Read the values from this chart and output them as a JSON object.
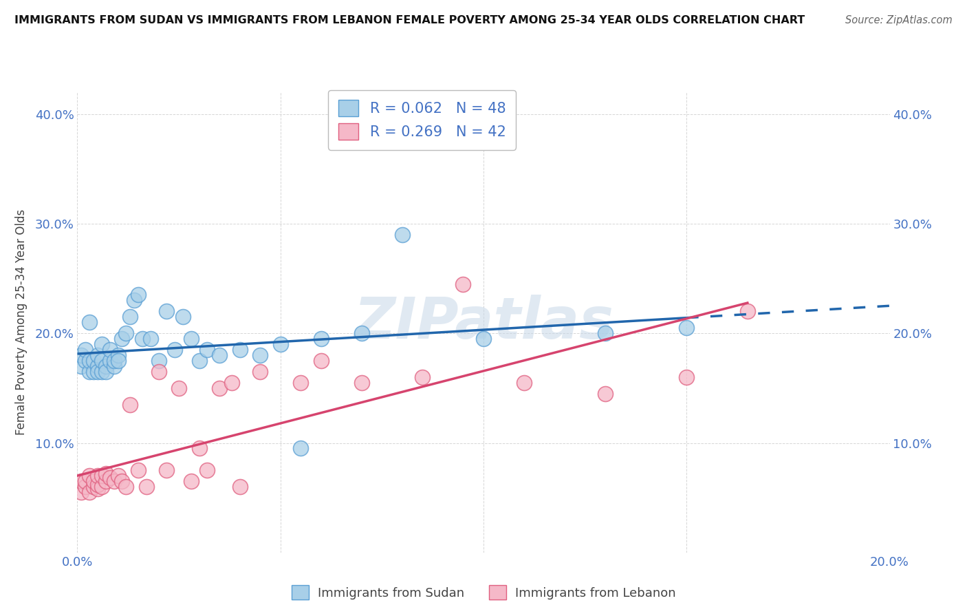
{
  "title": "IMMIGRANTS FROM SUDAN VS IMMIGRANTS FROM LEBANON FEMALE POVERTY AMONG 25-34 YEAR OLDS CORRELATION CHART",
  "source": "Source: ZipAtlas.com",
  "ylabel": "Female Poverty Among 25-34 Year Olds",
  "xlim": [
    0.0,
    0.2
  ],
  "ylim": [
    0.0,
    0.42
  ],
  "sudan_color": "#a8cfe8",
  "lebanon_color": "#f5b8c8",
  "sudan_edge": "#5a9fd4",
  "lebanon_edge": "#e06080",
  "trend_sudan_color": "#2166ac",
  "trend_lebanon_color": "#d6446e",
  "r_sudan": 0.062,
  "n_sudan": 48,
  "r_lebanon": 0.269,
  "n_lebanon": 42,
  "sudan_x": [
    0.001,
    0.001,
    0.002,
    0.002,
    0.003,
    0.003,
    0.003,
    0.004,
    0.004,
    0.005,
    0.005,
    0.005,
    0.006,
    0.006,
    0.006,
    0.007,
    0.007,
    0.008,
    0.008,
    0.009,
    0.009,
    0.01,
    0.01,
    0.011,
    0.012,
    0.013,
    0.014,
    0.015,
    0.016,
    0.018,
    0.02,
    0.022,
    0.024,
    0.026,
    0.028,
    0.03,
    0.032,
    0.035,
    0.04,
    0.045,
    0.05,
    0.055,
    0.06,
    0.07,
    0.08,
    0.1,
    0.13,
    0.15
  ],
  "sudan_y": [
    0.17,
    0.18,
    0.175,
    0.185,
    0.165,
    0.175,
    0.21,
    0.165,
    0.175,
    0.17,
    0.165,
    0.18,
    0.165,
    0.175,
    0.19,
    0.17,
    0.165,
    0.175,
    0.185,
    0.17,
    0.175,
    0.18,
    0.175,
    0.195,
    0.2,
    0.215,
    0.23,
    0.235,
    0.195,
    0.195,
    0.175,
    0.22,
    0.185,
    0.215,
    0.195,
    0.175,
    0.185,
    0.18,
    0.185,
    0.18,
    0.19,
    0.095,
    0.195,
    0.2,
    0.29,
    0.195,
    0.2,
    0.205
  ],
  "lebanon_x": [
    0.001,
    0.001,
    0.002,
    0.002,
    0.003,
    0.003,
    0.004,
    0.004,
    0.005,
    0.005,
    0.005,
    0.006,
    0.006,
    0.007,
    0.007,
    0.008,
    0.009,
    0.01,
    0.011,
    0.012,
    0.013,
    0.015,
    0.017,
    0.02,
    0.022,
    0.025,
    0.028,
    0.03,
    0.032,
    0.035,
    0.038,
    0.04,
    0.045,
    0.055,
    0.06,
    0.07,
    0.085,
    0.095,
    0.11,
    0.13,
    0.15,
    0.165
  ],
  "lebanon_y": [
    0.055,
    0.065,
    0.06,
    0.065,
    0.055,
    0.07,
    0.06,
    0.065,
    0.058,
    0.062,
    0.07,
    0.06,
    0.07,
    0.065,
    0.072,
    0.068,
    0.065,
    0.07,
    0.065,
    0.06,
    0.135,
    0.075,
    0.06,
    0.165,
    0.075,
    0.15,
    0.065,
    0.095,
    0.075,
    0.15,
    0.155,
    0.06,
    0.165,
    0.155,
    0.175,
    0.155,
    0.16,
    0.245,
    0.155,
    0.145,
    0.16,
    0.22
  ],
  "watermark_text": "ZIPatlas",
  "background_color": "#ffffff",
  "grid_color": "#cccccc",
  "tick_color": "#4472c4",
  "label_color": "#444444"
}
